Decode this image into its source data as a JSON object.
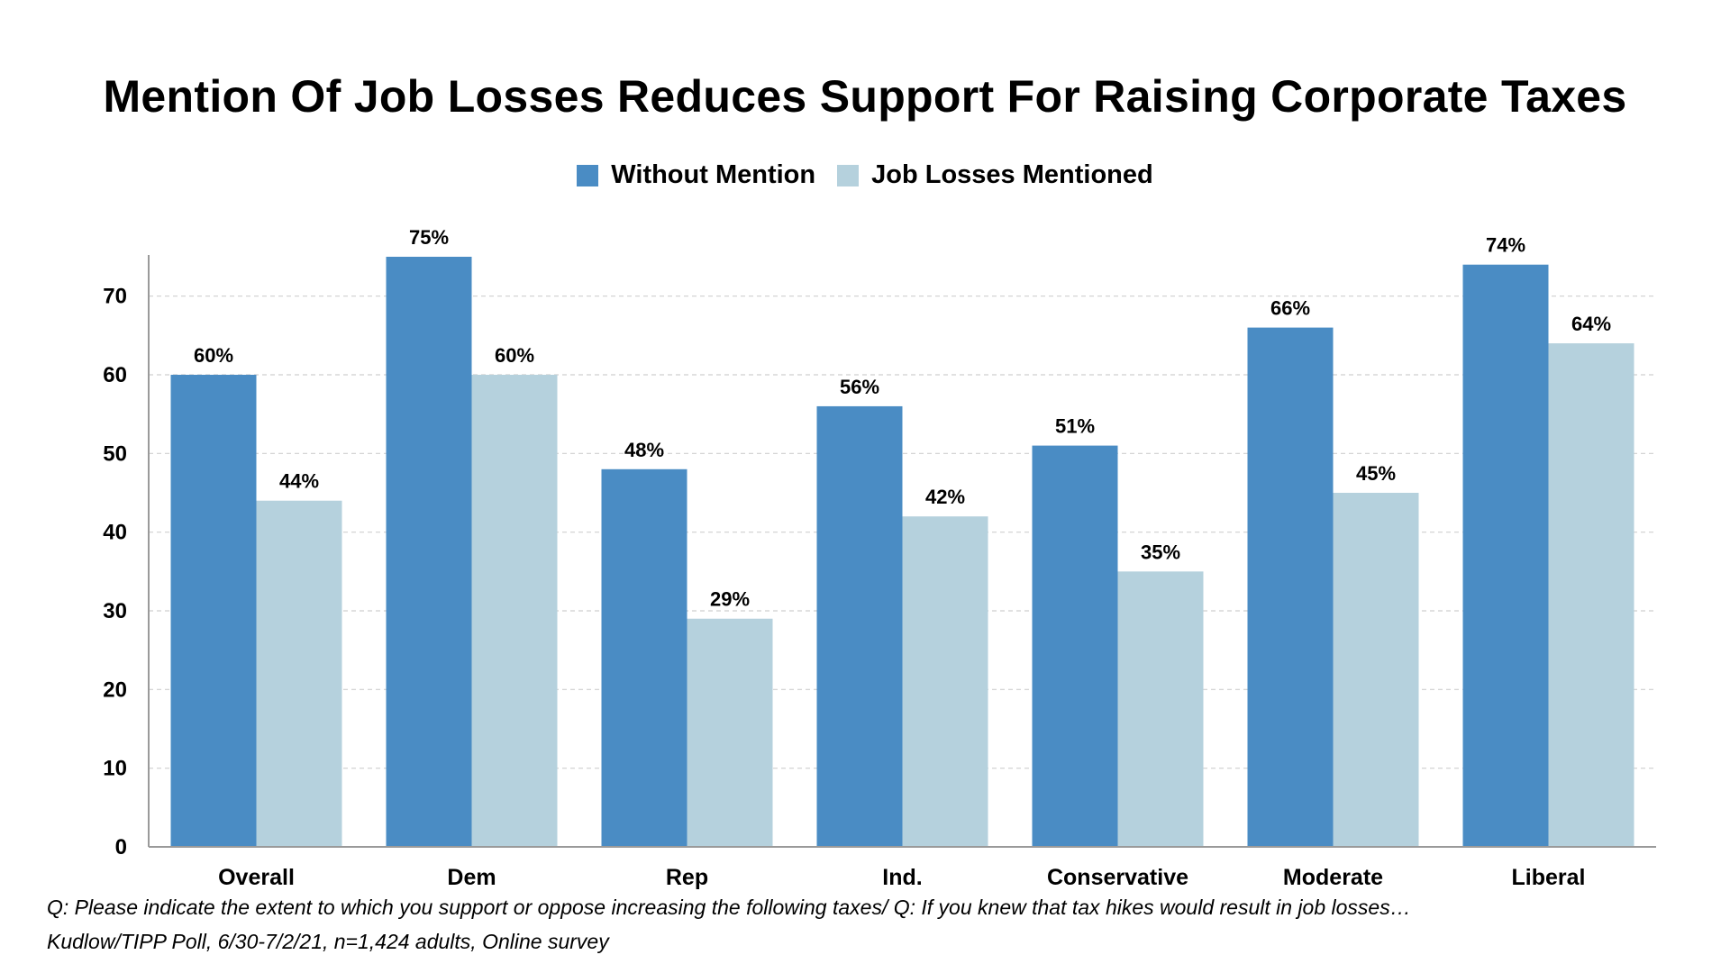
{
  "chart_data": {
    "type": "bar",
    "title": "Mention Of Job Losses Reduces Support For Raising Corporate Taxes",
    "categories": [
      "Overall",
      "Dem",
      "Rep",
      "Ind.",
      "Conservative",
      "Moderate",
      "Liberal"
    ],
    "series": [
      {
        "name": "Without Mention",
        "color": "#4a8cc4",
        "values": [
          60,
          75,
          48,
          56,
          51,
          66,
          74
        ]
      },
      {
        "name": "Job Losses Mentioned",
        "color": "#b5d1dd",
        "values": [
          44,
          60,
          29,
          42,
          35,
          45,
          64
        ]
      }
    ],
    "value_labels": [
      [
        "60%",
        "75%",
        "48%",
        "56%",
        "51%",
        "66%",
        "74%"
      ],
      [
        "44%",
        "60%",
        "29%",
        "42%",
        "35%",
        "45%",
        "64%"
      ]
    ],
    "ylim": [
      0,
      75
    ],
    "yticks": [
      0,
      10,
      20,
      30,
      40,
      50,
      60,
      70
    ],
    "xlabel": "",
    "ylabel": "",
    "grid": true,
    "legend_position": "top-center"
  },
  "footnote": {
    "line1": "Q:  Please indicate the extent to which you support or oppose increasing the following taxes/ Q:  If  you knew that tax hikes would result in job losses…",
    "line2": "Kudlow/TIPP Poll, 6/30-7/2/21, n=1,424 adults, Online survey"
  }
}
